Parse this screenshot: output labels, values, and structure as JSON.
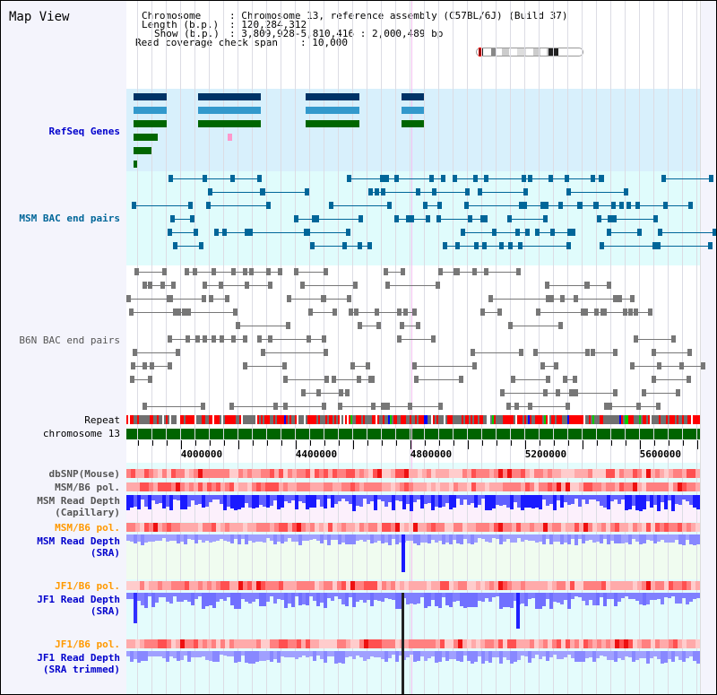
{
  "title": "Map View",
  "info": {
    "chromosome_label": "Chromosome",
    "chromosome_value": "Chromosome 13, reference assembly (C57BL/6J) (Build 37)",
    "length_label": "Length (b.p.)",
    "length_value": "120,284,312",
    "show_label": "Show (b.p.)",
    "show_value": "3,809,928-5,810,416 : 2,000,489 bp",
    "span_label": "Read coverage check span",
    "span_value": "10,000"
  },
  "tracks": {
    "refseq": "RefSeq Genes",
    "msm_bac": "MSM BAC end pairs",
    "b6n_bac": "B6N BAC end pairs",
    "repeat": "Repeat",
    "chromosome": "chromosome 13",
    "dbsnp": "dbSNP(Mouse)",
    "msm_b6_pol_1": "MSM/B6 pol.",
    "msm_depth_cap_1": "MSM Read Depth",
    "msm_depth_cap_2": "(Capillary)",
    "msm_b6_pol_2": "MSM/B6 pol.",
    "msm_depth_sra_1": "MSM Read Depth",
    "msm_depth_sra_2": "(SRA)",
    "jf1_pol_1": "JF1/B6 pol.",
    "jf1_depth_1": "JF1 Read Depth",
    "jf1_depth_2": "(SRA)",
    "jf1_pol_2": "JF1/B6 pol.",
    "jf1_trim_1": "JF1 Read Depth",
    "jf1_trim_2": "(SRA trimmed)"
  },
  "axis": {
    "start_bp": 3809928,
    "end_bp": 5810416,
    "ticks": [
      "4000000",
      "4400000",
      "4800000",
      "5200000",
      "5600000"
    ]
  },
  "colors": {
    "gray_label": "#555555",
    "orange_label": "#ff9900",
    "blue_label": "#0000cc",
    "refseq_label": "#0000cc",
    "msm_label": "#006699",
    "chromosome_bar": "#006400"
  }
}
